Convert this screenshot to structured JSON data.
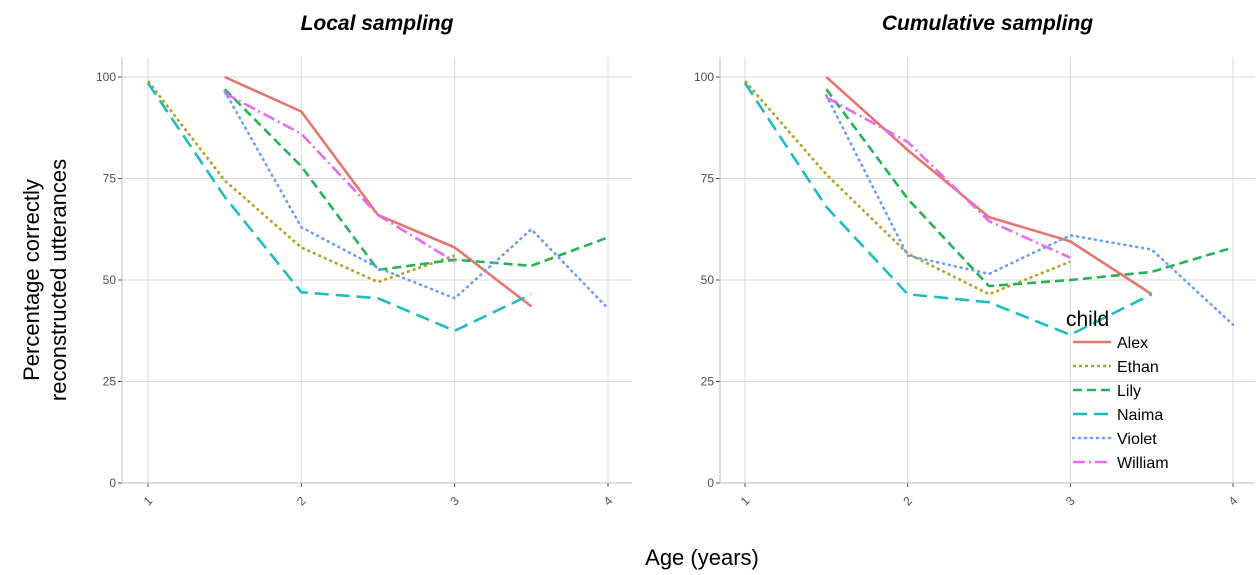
{
  "chart_data": {
    "type": "line",
    "xlabel": "Age (years)",
    "ylabel_lines": [
      "Percentage correctly",
      "reconstructed utterances"
    ],
    "x_ticks": [
      "1",
      "2",
      "3",
      "4"
    ],
    "y_ticks": [
      "0",
      "25",
      "50",
      "75",
      "100"
    ],
    "ylim": [
      0,
      100
    ],
    "legend": {
      "title": "child",
      "placement": "right, overlapping bottom-right of second panel"
    },
    "series_styles": [
      {
        "name": "Alex",
        "color": "#E7756F",
        "dash": "solid"
      },
      {
        "name": "Ethan",
        "color": "#B4A024",
        "dash": "dotted-dash"
      },
      {
        "name": "Lily",
        "color": "#25B355",
        "dash": "dashed"
      },
      {
        "name": "Naima",
        "color": "#1FBBC4",
        "dash": "long-dash"
      },
      {
        "name": "Violet",
        "color": "#6C9EF8",
        "dash": "dotted"
      },
      {
        "name": "William",
        "color": "#E76BF0",
        "dash": "dot-dash"
      }
    ],
    "panels": [
      {
        "title": "Local sampling",
        "xlim": [
          1,
          4
        ],
        "series": [
          {
            "name": "Alex",
            "x": [
              1.5,
              2.0,
              2.5,
              3.0,
              3.5
            ],
            "y": [
              100,
              91.5,
              66,
              58,
              43.5
            ]
          },
          {
            "name": "Ethan",
            "x": [
              1.0,
              1.5,
              2.0,
              2.5,
              3.0
            ],
            "y": [
              99,
              74.5,
              58,
              49.5,
              56
            ]
          },
          {
            "name": "Lily",
            "x": [
              1.5,
              2.0,
              2.5,
              3.0,
              3.5,
              4.0
            ],
            "y": [
              97,
              78,
              52.5,
              55,
              53.5,
              60.5
            ]
          },
          {
            "name": "Naima",
            "x": [
              1.0,
              1.5,
              2.0,
              2.5,
              3.0,
              3.5
            ],
            "y": [
              98.5,
              70.5,
              47,
              45.5,
              37.5,
              46.5
            ]
          },
          {
            "name": "Violet",
            "x": [
              1.5,
              2.0,
              2.5,
              3.0,
              3.5,
              4.0
            ],
            "y": [
              96.5,
              63,
              53,
              45.5,
              62.5,
              43
            ]
          },
          {
            "name": "William",
            "x": [
              1.5,
              2.0,
              2.5,
              3.0
            ],
            "y": [
              96,
              86,
              66,
              54.5
            ]
          }
        ]
      },
      {
        "title": "Cumulative sampling",
        "xlim": [
          1,
          4
        ],
        "series": [
          {
            "name": "Alex",
            "x": [
              1.5,
              2.0,
              2.5,
              3.0,
              3.5
            ],
            "y": [
              100,
              82,
              65.5,
              59.5,
              46.5
            ]
          },
          {
            "name": "Ethan",
            "x": [
              1.0,
              1.5,
              2.0,
              2.5,
              3.0
            ],
            "y": [
              99,
              76,
              56.5,
              46.5,
              54.5
            ]
          },
          {
            "name": "Lily",
            "x": [
              1.5,
              2.0,
              2.5,
              3.0,
              3.5,
              4.0
            ],
            "y": [
              97,
              70,
              48.5,
              50,
              52,
              58
            ]
          },
          {
            "name": "Naima",
            "x": [
              1.0,
              1.5,
              2.0,
              2.5,
              3.0,
              3.5
            ],
            "y": [
              98.5,
              68,
              46.5,
              44.5,
              36.5,
              46.5
            ]
          },
          {
            "name": "Violet",
            "x": [
              1.5,
              2.0,
              2.5,
              3.0,
              3.5,
              4.0
            ],
            "y": [
              95.5,
              56,
              51.5,
              61,
              57.5,
              39
            ]
          },
          {
            "name": "William",
            "x": [
              1.5,
              2.0,
              2.5,
              3.0
            ],
            "y": [
              95,
              84,
              64.5,
              55.5
            ]
          }
        ]
      }
    ]
  }
}
